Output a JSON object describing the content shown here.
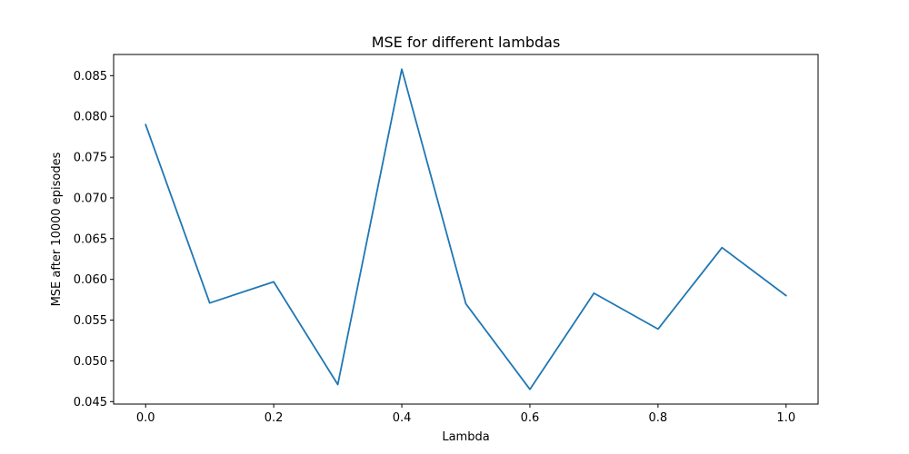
{
  "chart_data": {
    "type": "line",
    "title": "MSE for different lambdas",
    "xlabel": "Lambda",
    "ylabel": "MSE after 10000 episodes",
    "xlim": [
      -0.05,
      1.05
    ],
    "ylim": [
      0.0447,
      0.0876
    ],
    "xticks": [
      0.0,
      0.2,
      0.4,
      0.6,
      0.8,
      1.0
    ],
    "xtick_labels": [
      "0.0",
      "0.2",
      "0.4",
      "0.6",
      "0.8",
      "1.0"
    ],
    "yticks": [
      0.045,
      0.05,
      0.055,
      0.06,
      0.065,
      0.07,
      0.075,
      0.08,
      0.085
    ],
    "ytick_labels": [
      "0.045",
      "0.050",
      "0.055",
      "0.060",
      "0.065",
      "0.070",
      "0.075",
      "0.080",
      "0.085"
    ],
    "grid": false,
    "series": [
      {
        "color": "#1f77b4",
        "x": [
          0.0,
          0.1,
          0.2,
          0.3,
          0.4,
          0.5,
          0.6,
          0.7,
          0.8,
          0.9,
          1.0
        ],
        "y": [
          0.079,
          0.0571,
          0.0597,
          0.0471,
          0.0858,
          0.057,
          0.0465,
          0.0583,
          0.0539,
          0.0639,
          0.058
        ]
      }
    ]
  }
}
